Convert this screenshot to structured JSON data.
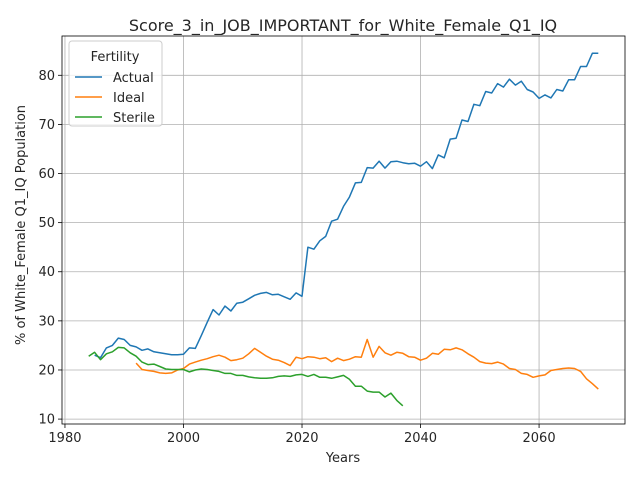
{
  "chart_data": {
    "type": "line",
    "title": "Score_3_in_JOB_IMPORTANT_for_White_Female_Q1_IQ",
    "xlabel": "Years",
    "ylabel": "% of White_Female Q1_IQ Population",
    "xlim": [
      1979.5,
      2074.5
    ],
    "ylim": [
      9,
      88
    ],
    "xticks": [
      1980,
      2000,
      2020,
      2040,
      2060
    ],
    "yticks": [
      10,
      20,
      30,
      40,
      50,
      60,
      70,
      80
    ],
    "grid": true,
    "legend": {
      "title": "Fertility",
      "placement": "top-left"
    },
    "series": [
      {
        "name": "Actual",
        "color": "#1f77b4",
        "x": [
          1985,
          1986,
          1987,
          1988,
          1989,
          1990,
          1991,
          1992,
          1993,
          1994,
          1995,
          1996,
          1997,
          1998,
          1999,
          2000,
          2001,
          2002,
          2003,
          2004,
          2005,
          2006,
          2007,
          2008,
          2009,
          2010,
          2011,
          2012,
          2013,
          2014,
          2015,
          2016,
          2017,
          2018,
          2019,
          2020,
          2021,
          2022,
          2023,
          2024,
          2025,
          2026,
          2027,
          2028,
          2029,
          2030,
          2031,
          2032,
          2033,
          2034,
          2035,
          2036,
          2037,
          2038,
          2039,
          2040,
          2041,
          2042,
          2043,
          2044,
          2045,
          2046,
          2047,
          2048,
          2049,
          2050,
          2051,
          2052,
          2053,
          2054,
          2055,
          2056,
          2057,
          2058,
          2059,
          2060,
          2061,
          2062,
          2063,
          2064,
          2065,
          2066,
          2067,
          2068,
          2069,
          2070
        ],
        "y": [
          23.0,
          22.5,
          24.5,
          25.0,
          26.5,
          26.2,
          25.0,
          24.7,
          24.0,
          24.3,
          23.7,
          23.5,
          23.3,
          23.1,
          23.1,
          23.2,
          24.5,
          24.4,
          27.0,
          29.7,
          32.3,
          31.2,
          33.0,
          32.0,
          33.6,
          33.8,
          34.5,
          35.2,
          35.6,
          35.8,
          35.3,
          35.4,
          34.9,
          34.4,
          35.7,
          35.0,
          45.0,
          44.6,
          46.3,
          47.2,
          50.3,
          50.7,
          53.3,
          55.2,
          58.1,
          58.2,
          61.2,
          61.1,
          62.5,
          61.1,
          62.4,
          62.5,
          62.2,
          62.0,
          62.1,
          61.5,
          62.4,
          61.0,
          63.8,
          63.2,
          67.0,
          67.2,
          70.9,
          70.6,
          74.1,
          73.8,
          76.7,
          76.4,
          78.3,
          77.6,
          79.2,
          78.0,
          78.8,
          77.1,
          76.6,
          75.3,
          76.0,
          75.4,
          77.1,
          76.8,
          79.1,
          79.1,
          81.8,
          81.8,
          84.5,
          84.5
        ]
      },
      {
        "name": "Ideal",
        "color": "#ff7f0e",
        "x": [
          1992,
          1993,
          1994,
          1995,
          1996,
          1997,
          1998,
          1999,
          2000,
          2001,
          2002,
          2003,
          2004,
          2005,
          2006,
          2007,
          2008,
          2009,
          2010,
          2011,
          2012,
          2013,
          2014,
          2015,
          2016,
          2017,
          2018,
          2019,
          2020,
          2021,
          2022,
          2023,
          2024,
          2025,
          2026,
          2027,
          2028,
          2029,
          2030,
          2031,
          2032,
          2033,
          2034,
          2035,
          2036,
          2037,
          2038,
          2039,
          2040,
          2041,
          2042,
          2043,
          2044,
          2045,
          2046,
          2047,
          2048,
          2049,
          2050,
          2051,
          2052,
          2053,
          2054,
          2055,
          2056,
          2057,
          2058,
          2059,
          2060,
          2061,
          2062,
          2063,
          2064,
          2065,
          2066,
          2067,
          2068,
          2069,
          2070
        ],
        "y": [
          21.4,
          20.1,
          19.9,
          19.7,
          19.4,
          19.3,
          19.4,
          20.0,
          20.3,
          21.2,
          21.6,
          22.0,
          22.3,
          22.7,
          23.0,
          22.6,
          21.9,
          22.1,
          22.4,
          23.3,
          24.4,
          23.6,
          22.8,
          22.2,
          22.0,
          21.5,
          20.9,
          22.6,
          22.3,
          22.7,
          22.6,
          22.3,
          22.5,
          21.7,
          22.4,
          21.9,
          22.2,
          22.7,
          22.6,
          26.2,
          22.6,
          24.8,
          23.5,
          23.0,
          23.6,
          23.4,
          22.7,
          22.6,
          22.0,
          22.4,
          23.4,
          23.2,
          24.2,
          24.1,
          24.5,
          24.1,
          23.3,
          22.6,
          21.7,
          21.4,
          21.3,
          21.6,
          21.2,
          20.3,
          20.1,
          19.3,
          19.1,
          18.5,
          18.8,
          19.0,
          19.9,
          20.1,
          20.3,
          20.4,
          20.3,
          19.7,
          18.2,
          17.2,
          16.1
        ]
      },
      {
        "name": "Sterile",
        "color": "#2ca02c",
        "x": [
          1984,
          1985,
          1986,
          1987,
          1988,
          1989,
          1990,
          1991,
          1992,
          1993,
          1994,
          1995,
          1996,
          1997,
          1998,
          1999,
          2000,
          2001,
          2002,
          2003,
          2004,
          2005,
          2006,
          2007,
          2008,
          2009,
          2010,
          2011,
          2012,
          2013,
          2014,
          2015,
          2016,
          2017,
          2018,
          2019,
          2020,
          2021,
          2022,
          2023,
          2024,
          2025,
          2026,
          2027,
          2028,
          2029,
          2030,
          2031,
          2032,
          2033,
          2034,
          2035,
          2036,
          2037
        ],
        "y": [
          22.8,
          23.6,
          22.1,
          23.3,
          23.7,
          24.6,
          24.5,
          23.5,
          22.8,
          21.6,
          21.1,
          21.2,
          20.7,
          20.2,
          20.1,
          20.1,
          20.1,
          19.6,
          20.0,
          20.2,
          20.1,
          19.9,
          19.7,
          19.3,
          19.3,
          18.9,
          18.9,
          18.6,
          18.4,
          18.3,
          18.3,
          18.4,
          18.7,
          18.8,
          18.7,
          19.0,
          19.1,
          18.7,
          19.1,
          18.5,
          18.5,
          18.3,
          18.6,
          18.9,
          18.1,
          16.7,
          16.7,
          15.7,
          15.5,
          15.5,
          14.5,
          15.3,
          13.8,
          12.7
        ]
      }
    ]
  }
}
